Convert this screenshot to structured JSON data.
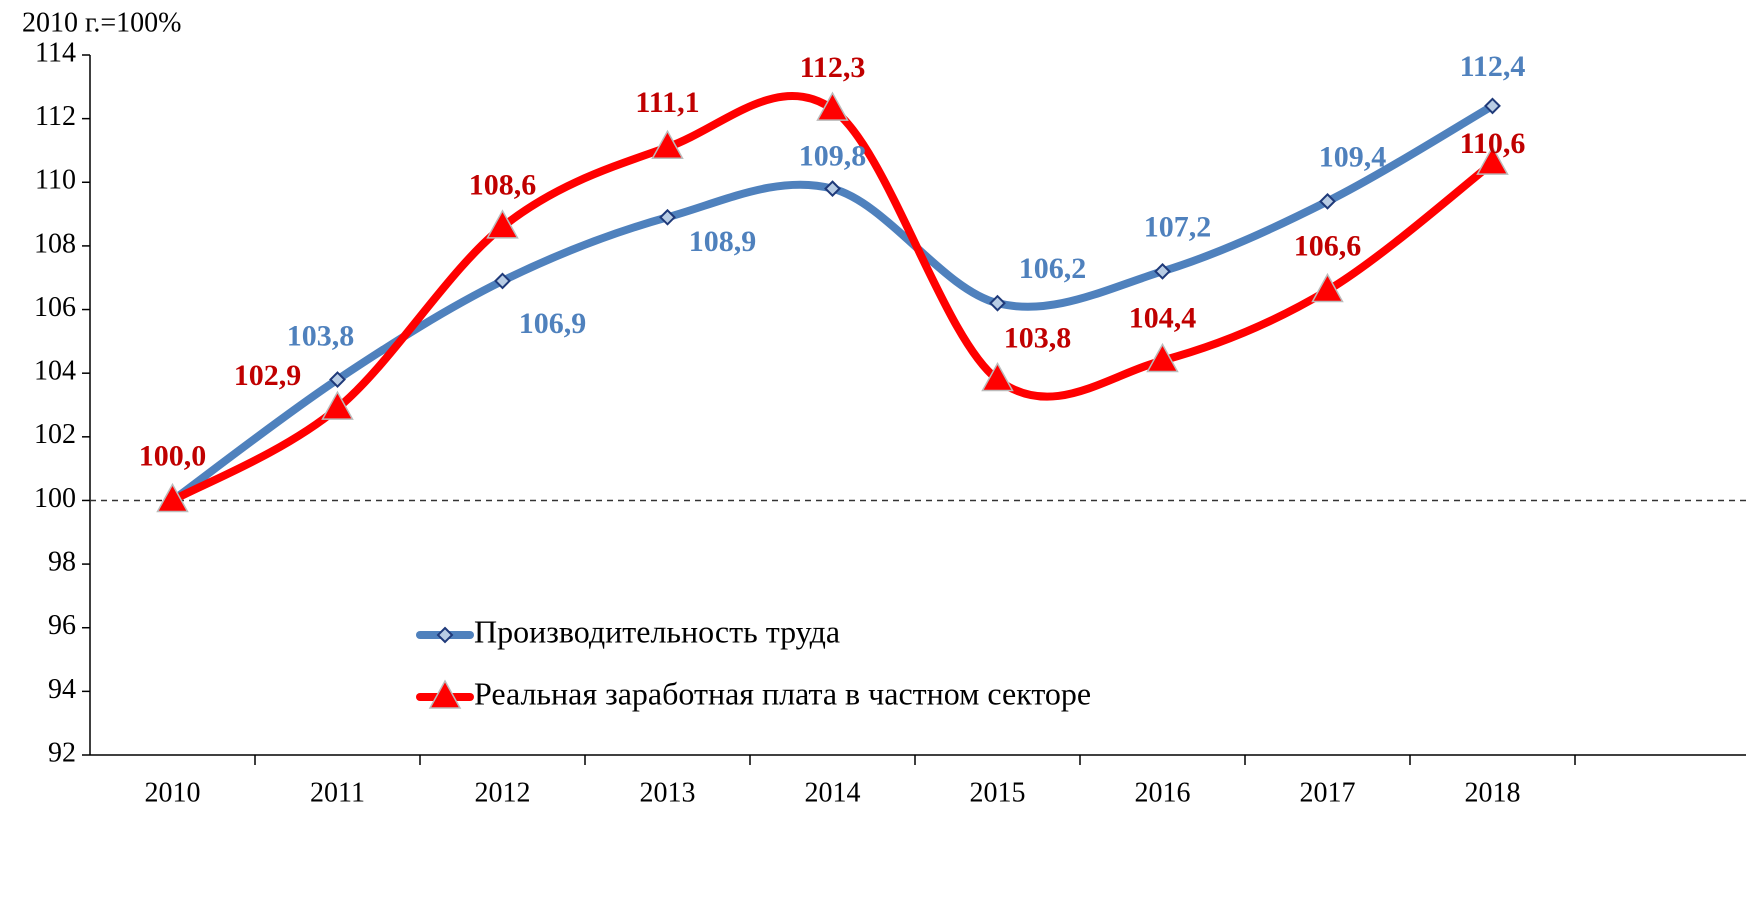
{
  "chart_data": {
    "type": "line",
    "y_label": "2010 г.=100%",
    "categories": [
      "2010",
      "2011",
      "2012",
      "2013",
      "2014",
      "2015",
      "2016",
      "2017",
      "2018"
    ],
    "series": [
      {
        "name": "Производительность труда",
        "color": "#4f81bd",
        "marker": "diamond",
        "values": [
          100,
          103.8,
          106.9,
          108.9,
          109.8,
          106.2,
          107.2,
          109.4,
          112.4
        ],
        "value_labels": [
          null,
          "103,8",
          "106,9",
          "108,9",
          "109,8",
          "106,2",
          "107,2",
          "109,4",
          "112,4"
        ]
      },
      {
        "name": "Реальная заработная плата в частном секторе",
        "color": "#ff0000",
        "label_color": "#c00000",
        "marker": "triangle",
        "values": [
          100,
          102.9,
          108.6,
          111.1,
          112.3,
          103.8,
          104.4,
          106.6,
          110.6
        ],
        "value_labels": [
          "100,0",
          "102,9",
          "108,6",
          "111,1",
          "112,3",
          "103,8",
          "104,4",
          "106,6",
          "110,6"
        ]
      }
    ],
    "ylim": [
      92,
      114
    ],
    "yticks": [
      92,
      94,
      96,
      98,
      100,
      102,
      104,
      106,
      108,
      110,
      112,
      114
    ],
    "baseline": 100,
    "smooth": true
  }
}
